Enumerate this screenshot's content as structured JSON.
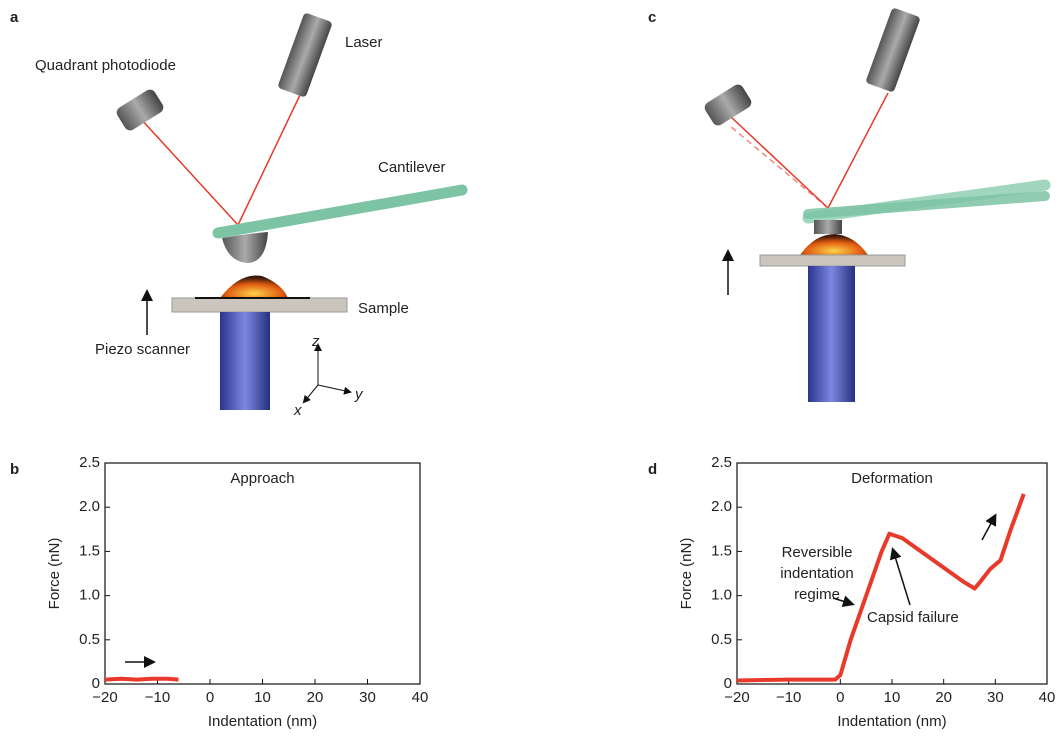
{
  "panels": {
    "a": "a",
    "b": "b",
    "c": "c",
    "d": "d"
  },
  "diagram_a": {
    "photodiode": "Quadrant photodiode",
    "laser": "Laser",
    "cantilever": "Cantilever",
    "sample": "Sample",
    "scanner": "Piezo scanner",
    "axis_z": "z",
    "axis_y": "y",
    "axis_x": "x"
  },
  "chart_data": [
    {
      "type": "line",
      "title": "Approach",
      "x_label": "Indentation (nm)",
      "y_label": "Force (nN)",
      "xlim": [
        -20,
        40
      ],
      "ylim": [
        0,
        2.5
      ],
      "xticks": [
        {
          "value": -20,
          "label": "−20"
        },
        {
          "value": -10,
          "label": "−10"
        },
        0,
        10,
        20,
        30,
        40
      ],
      "yticks": [
        0,
        0.5,
        {
          "value": 1.0,
          "label": "1.0"
        },
        1.5,
        {
          "value": 2.0,
          "label": "2.0"
        },
        2.5
      ],
      "series": [
        {
          "color": "#e8392a",
          "x": [
            -20,
            -17,
            -14,
            -11,
            -8,
            -6
          ],
          "values": [
            0.05,
            0.06,
            0.05,
            0.06,
            0.06,
            0.05
          ]
        }
      ]
    },
    {
      "type": "line",
      "title": "Deformation",
      "x_label": "Indentation (nm)",
      "y_label": "Force (nN)",
      "xlim": [
        -20,
        40
      ],
      "ylim": [
        0,
        2.5
      ],
      "xticks": [
        {
          "value": -20,
          "label": "−20"
        },
        {
          "value": -10,
          "label": "−10"
        },
        0,
        10,
        20,
        30,
        40
      ],
      "yticks": [
        0,
        0.5,
        {
          "value": 1.0,
          "label": "1.0"
        },
        1.5,
        {
          "value": 2.0,
          "label": "2.0"
        },
        2.5
      ],
      "annotations": {
        "regime": [
          "Reversible",
          "indentation",
          "regime"
        ],
        "failure": "Capsid failure"
      },
      "series": [
        {
          "color": "#e8392a",
          "x": [
            -20,
            -10,
            -1,
            0,
            2,
            5,
            8,
            9.5,
            12,
            18,
            24,
            26,
            27,
            29,
            31,
            33,
            35.5
          ],
          "values": [
            0.04,
            0.05,
            0.05,
            0.1,
            0.5,
            1.0,
            1.5,
            1.7,
            1.65,
            1.4,
            1.15,
            1.08,
            1.15,
            1.3,
            1.4,
            1.75,
            2.15
          ]
        }
      ]
    }
  ]
}
